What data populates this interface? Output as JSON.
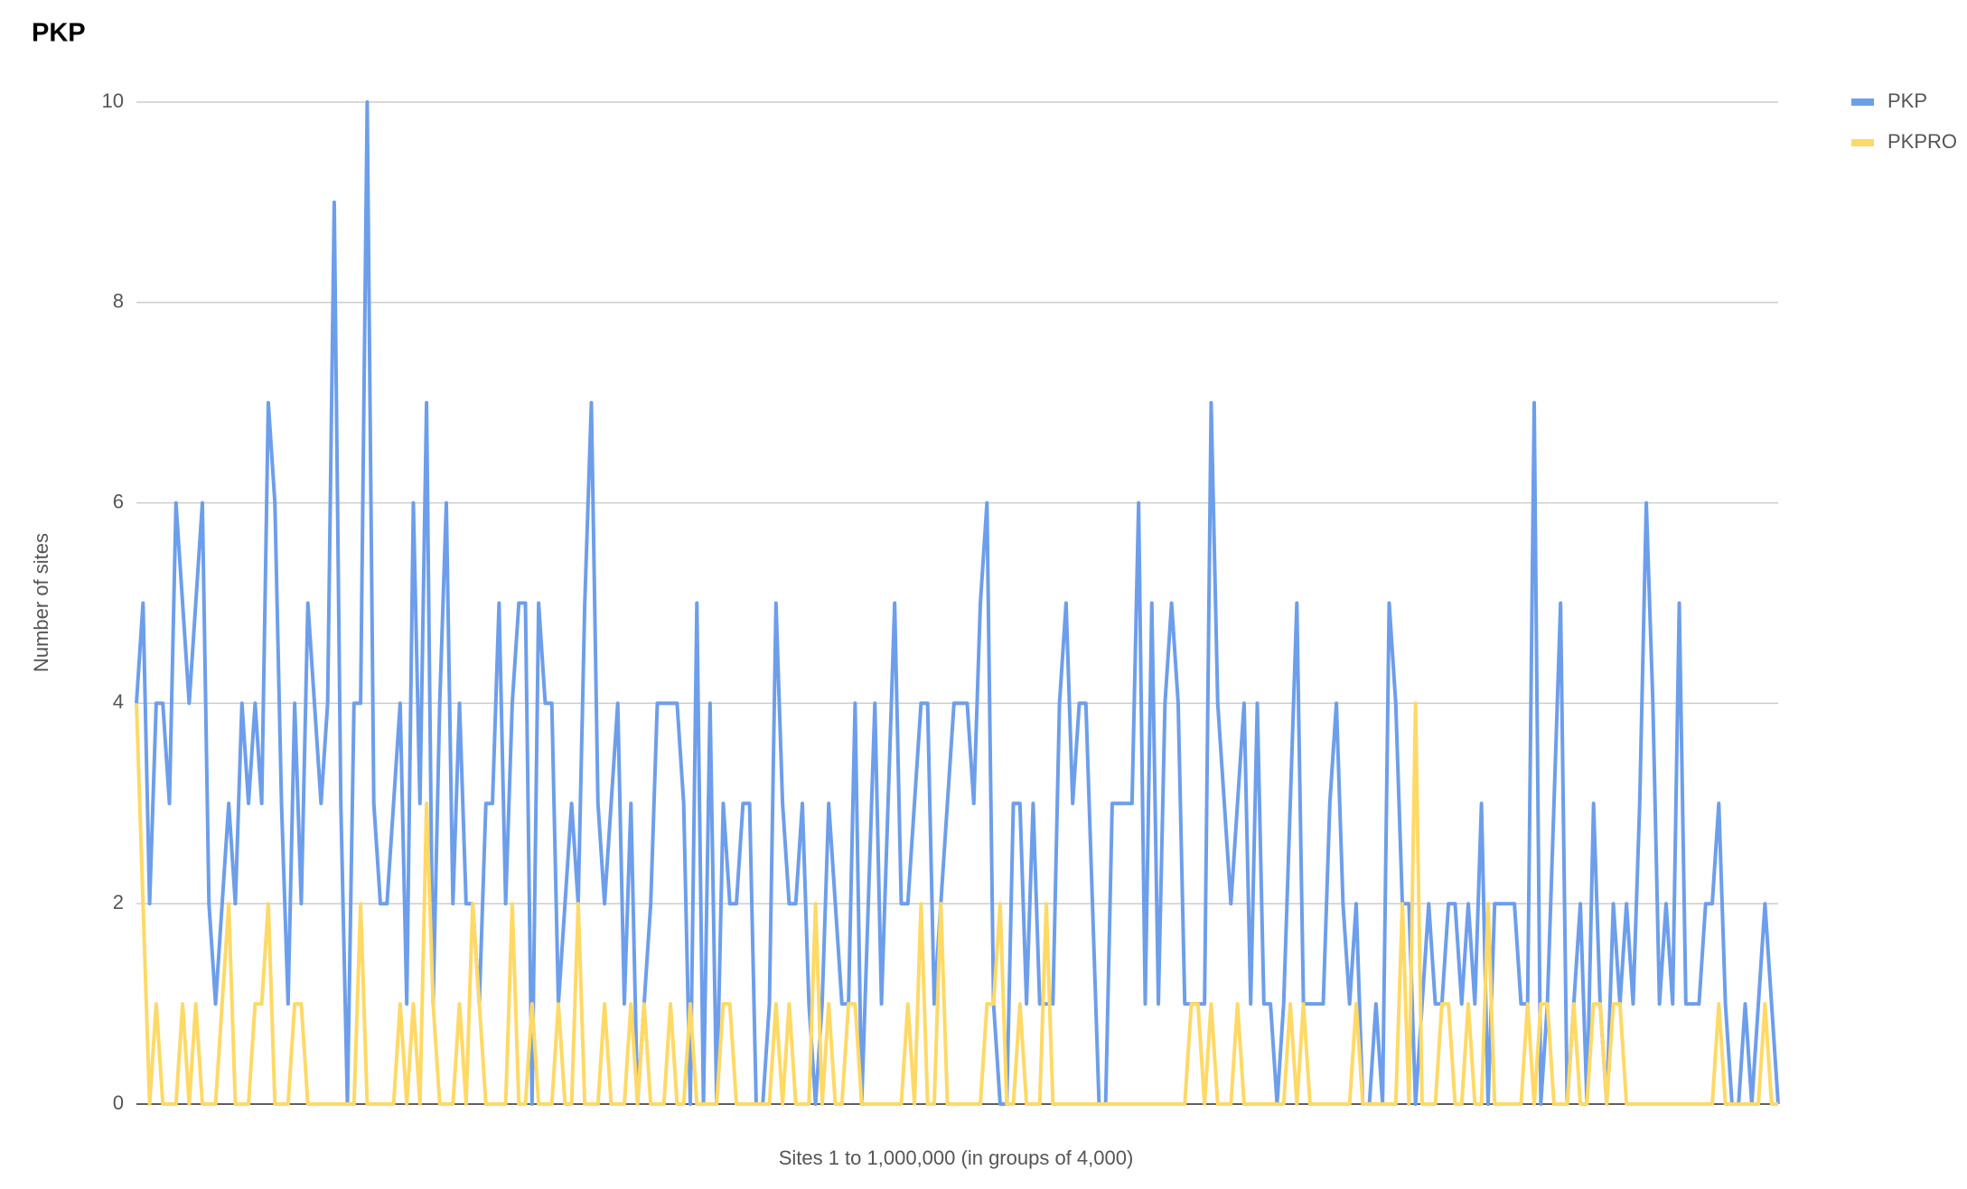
{
  "chart_data": {
    "type": "line",
    "title": "PKP",
    "x_label": "Sites 1 to 1,000,000 (in groups of 4,000)",
    "y_label": "Number of sites",
    "ylim": [
      0,
      10
    ],
    "yticks": [
      0,
      2,
      4,
      6,
      8,
      10
    ],
    "grid": true,
    "legend": "right",
    "series": [
      {
        "name": "PKP",
        "color": "#6d9eeb",
        "values": [
          4,
          5,
          2,
          4,
          4,
          3,
          6,
          5,
          4,
          5,
          6,
          2,
          1,
          2,
          3,
          2,
          4,
          3,
          4,
          3,
          7,
          6,
          3,
          1,
          4,
          2,
          5,
          4,
          3,
          4,
          9,
          3,
          0,
          4,
          4,
          10,
          3,
          2,
          2,
          3,
          4,
          1,
          6,
          3,
          7,
          1,
          4,
          6,
          2,
          4,
          2,
          2,
          1,
          3,
          3,
          5,
          2,
          4,
          5,
          5,
          0,
          5,
          4,
          4,
          1,
          2,
          3,
          2,
          5,
          7,
          3,
          2,
          3,
          4,
          1,
          3,
          0,
          1,
          2,
          4,
          4,
          4,
          4,
          3,
          0,
          5,
          0,
          4,
          0,
          3,
          2,
          2,
          3,
          3,
          0,
          0,
          1,
          5,
          3,
          2,
          2,
          3,
          1,
          0,
          1,
          3,
          2,
          1,
          1,
          4,
          0,
          2,
          4,
          1,
          3,
          5,
          2,
          2,
          3,
          4,
          4,
          1,
          2,
          3,
          4,
          4,
          4,
          3,
          5,
          6,
          1,
          0,
          0,
          3,
          3,
          1,
          3,
          1,
          1,
          1,
          4,
          5,
          3,
          4,
          4,
          2,
          0,
          0,
          3,
          3,
          3,
          3,
          6,
          1,
          5,
          1,
          4,
          5,
          4,
          1,
          1,
          1,
          1,
          7,
          4,
          3,
          2,
          3,
          4,
          1,
          4,
          1,
          1,
          0,
          1,
          3,
          5,
          1,
          1,
          1,
          1,
          3,
          4,
          2,
          1,
          2,
          0,
          0,
          1,
          0,
          5,
          4,
          2,
          2,
          0,
          1,
          2,
          1,
          1,
          2,
          2,
          1,
          2,
          1,
          3,
          0,
          2,
          2,
          2,
          2,
          1,
          1,
          7,
          0,
          1,
          3,
          5,
          0,
          1,
          2,
          0,
          3,
          1,
          0,
          2,
          1,
          2,
          1,
          3,
          6,
          4,
          1,
          2,
          1,
          5,
          1,
          1,
          1,
          2,
          2,
          3,
          1,
          0,
          0,
          1,
          0,
          1,
          2,
          1,
          0
        ]
      },
      {
        "name": "PKPRO",
        "color": "#ffd966",
        "values": [
          4,
          2,
          0,
          1,
          0,
          0,
          0,
          1,
          0,
          1,
          0,
          0,
          0,
          1,
          2,
          0,
          0,
          0,
          1,
          1,
          2,
          0,
          0,
          0,
          1,
          1,
          0,
          0,
          0,
          0,
          0,
          0,
          0,
          0,
          2,
          0,
          0,
          0,
          0,
          0,
          1,
          0,
          1,
          0,
          3,
          1,
          0,
          0,
          0,
          1,
          0,
          2,
          1,
          0,
          0,
          0,
          0,
          2,
          0,
          0,
          1,
          0,
          0,
          0,
          1,
          0,
          0,
          2,
          0,
          0,
          0,
          1,
          0,
          0,
          0,
          1,
          0,
          1,
          0,
          0,
          0,
          1,
          0,
          0,
          1,
          0,
          0,
          0,
          0,
          1,
          1,
          0,
          0,
          0,
          0,
          0,
          0,
          1,
          0,
          1,
          0,
          0,
          0,
          2,
          0,
          1,
          0,
          0,
          1,
          1,
          0,
          0,
          0,
          0,
          0,
          0,
          0,
          1,
          0,
          2,
          0,
          0,
          2,
          0,
          0,
          0,
          0,
          0,
          0,
          1,
          1,
          2,
          0,
          0,
          1,
          0,
          0,
          0,
          2,
          0,
          0,
          0,
          0,
          0,
          0,
          0,
          0,
          0,
          0,
          0,
          0,
          0,
          0,
          0,
          0,
          0,
          0,
          0,
          0,
          0,
          1,
          1,
          0,
          1,
          0,
          0,
          0,
          1,
          0,
          0,
          0,
          0,
          0,
          0,
          0,
          1,
          0,
          1,
          0,
          0,
          0,
          0,
          0,
          0,
          0,
          1,
          0,
          0,
          0,
          0,
          0,
          0,
          2,
          0,
          4,
          0,
          0,
          0,
          1,
          1,
          0,
          0,
          1,
          0,
          0,
          2,
          0,
          0,
          0,
          0,
          0,
          1,
          0,
          1,
          1,
          0,
          0,
          0,
          1,
          0,
          0,
          1,
          1,
          0,
          1,
          1,
          0,
          0,
          0,
          0,
          0,
          0,
          0,
          0,
          0,
          0,
          0,
          0,
          0,
          0,
          1,
          0,
          0,
          0,
          0,
          0,
          0,
          1,
          0,
          0
        ]
      }
    ]
  }
}
